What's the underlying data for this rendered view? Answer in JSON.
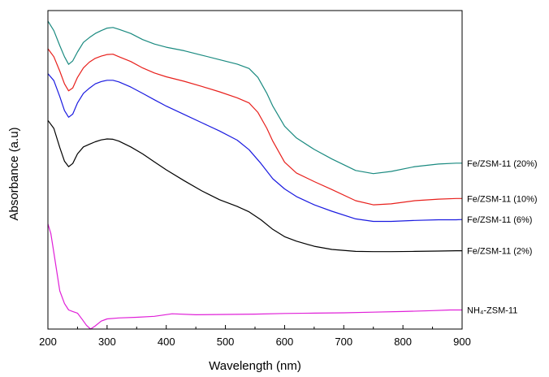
{
  "chart_data": {
    "type": "line",
    "title": "",
    "xlabel": "Wavelength (nm)",
    "ylabel": "Absorbance (a.u)",
    "xlim": [
      200,
      900
    ],
    "ylim": [
      0,
      1
    ],
    "xticks": [
      "200",
      "300",
      "400",
      "500",
      "600",
      "700",
      "800",
      "900"
    ],
    "y_tick_labels_shown": false,
    "grid": false,
    "legend": "inline-right",
    "series": [
      {
        "name": "Fe/ZSM-11 (20%)",
        "color": "#1a8a80",
        "x": [
          200,
          210,
          220,
          228,
          235,
          242,
          250,
          260,
          270,
          280,
          290,
          300,
          310,
          320,
          340,
          360,
          380,
          400,
          430,
          460,
          490,
          520,
          540,
          555,
          570,
          580,
          600,
          620,
          650,
          680,
          720,
          750,
          780,
          820,
          860,
          890,
          900
        ],
        "y": [
          0.967,
          0.937,
          0.89,
          0.855,
          0.831,
          0.842,
          0.87,
          0.9,
          0.915,
          0.928,
          0.937,
          0.945,
          0.947,
          0.941,
          0.928,
          0.909,
          0.895,
          0.885,
          0.874,
          0.86,
          0.846,
          0.832,
          0.818,
          0.79,
          0.74,
          0.7,
          0.637,
          0.6,
          0.564,
          0.534,
          0.498,
          0.488,
          0.495,
          0.51,
          0.518,
          0.521,
          0.521
        ]
      },
      {
        "name": "Fe/ZSM-11 (10%)",
        "color": "#e8201c",
        "x": [
          200,
          210,
          220,
          228,
          235,
          242,
          250,
          260,
          270,
          280,
          290,
          300,
          310,
          320,
          340,
          360,
          380,
          400,
          430,
          460,
          490,
          520,
          540,
          555,
          570,
          580,
          600,
          620,
          650,
          680,
          720,
          750,
          780,
          820,
          860,
          890,
          900
        ],
        "y": [
          0.88,
          0.855,
          0.81,
          0.77,
          0.748,
          0.757,
          0.79,
          0.82,
          0.838,
          0.85,
          0.857,
          0.862,
          0.863,
          0.855,
          0.84,
          0.82,
          0.804,
          0.792,
          0.778,
          0.762,
          0.745,
          0.726,
          0.71,
          0.68,
          0.63,
          0.59,
          0.524,
          0.49,
          0.463,
          0.438,
          0.403,
          0.39,
          0.393,
          0.403,
          0.408,
          0.41,
          0.41
        ]
      },
      {
        "name": "Fe/ZSM-11 (6%)",
        "color": "#1a1ae0",
        "x": [
          200,
          210,
          220,
          228,
          235,
          242,
          250,
          260,
          270,
          280,
          290,
          300,
          310,
          320,
          340,
          360,
          380,
          400,
          430,
          460,
          490,
          520,
          540,
          560,
          580,
          600,
          620,
          650,
          680,
          720,
          750,
          780,
          820,
          860,
          890,
          900
        ],
        "y": [
          0.802,
          0.78,
          0.73,
          0.686,
          0.665,
          0.675,
          0.71,
          0.74,
          0.756,
          0.77,
          0.777,
          0.781,
          0.781,
          0.776,
          0.76,
          0.74,
          0.72,
          0.7,
          0.674,
          0.648,
          0.622,
          0.593,
          0.563,
          0.52,
          0.472,
          0.44,
          0.416,
          0.39,
          0.37,
          0.346,
          0.338,
          0.338,
          0.341,
          0.343,
          0.343,
          0.344
        ]
      },
      {
        "name": "Fe/ZSM-11 (2%)",
        "color": "#000000",
        "x": [
          200,
          210,
          220,
          228,
          235,
          242,
          250,
          260,
          270,
          280,
          290,
          300,
          310,
          320,
          340,
          360,
          380,
          400,
          430,
          460,
          490,
          520,
          540,
          560,
          580,
          600,
          620,
          650,
          680,
          720,
          750,
          780,
          820,
          860,
          890,
          900
        ],
        "y": [
          0.655,
          0.63,
          0.57,
          0.527,
          0.51,
          0.52,
          0.55,
          0.572,
          0.58,
          0.588,
          0.594,
          0.597,
          0.596,
          0.59,
          0.572,
          0.55,
          0.525,
          0.5,
          0.466,
          0.434,
          0.406,
          0.385,
          0.368,
          0.343,
          0.313,
          0.29,
          0.276,
          0.26,
          0.25,
          0.244,
          0.243,
          0.243,
          0.244,
          0.245,
          0.246,
          0.246
        ]
      },
      {
        "name": "NH₄-ZSM-11",
        "color": "#e020d8",
        "x": [
          200,
          205,
          210,
          220,
          228,
          235,
          242,
          250,
          258,
          265,
          272,
          280,
          290,
          300,
          320,
          350,
          380,
          410,
          450,
          500,
          550,
          600,
          650,
          700,
          750,
          800,
          850,
          880,
          900
        ],
        "y": [
          0.33,
          0.3,
          0.24,
          0.12,
          0.08,
          0.06,
          0.055,
          0.05,
          0.03,
          0.012,
          0.0,
          0.01,
          0.025,
          0.032,
          0.035,
          0.037,
          0.04,
          0.048,
          0.045,
          0.046,
          0.047,
          0.049,
          0.05,
          0.051,
          0.053,
          0.055,
          0.058,
          0.06,
          0.06
        ]
      }
    ]
  }
}
